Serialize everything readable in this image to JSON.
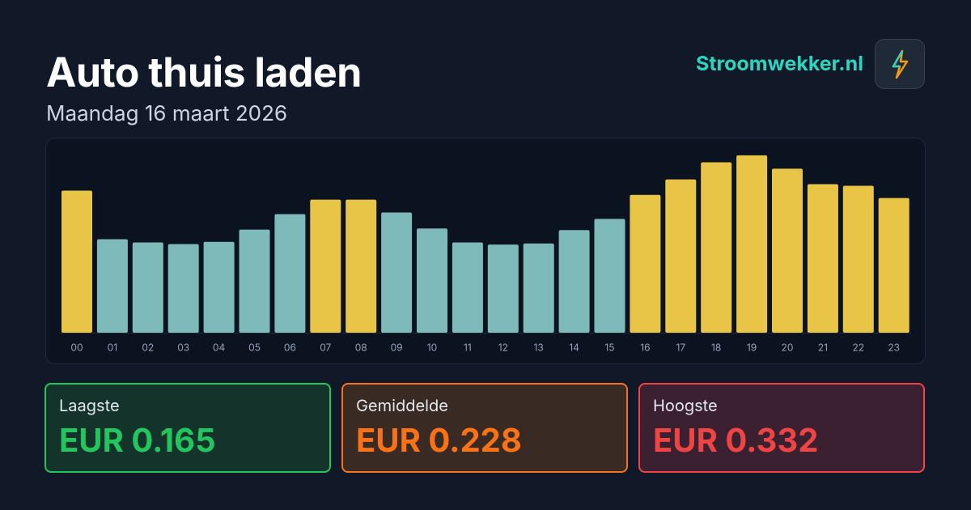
{
  "header": {
    "title": "Auto thuis laden",
    "subtitle": "Maandag 16 maart 2026",
    "brand": "Stroomwekker.nl"
  },
  "chart_data": {
    "type": "bar",
    "categories": [
      "00",
      "01",
      "02",
      "03",
      "04",
      "05",
      "06",
      "07",
      "08",
      "09",
      "10",
      "11",
      "12",
      "13",
      "14",
      "15",
      "16",
      "17",
      "18",
      "19",
      "20",
      "21",
      "22",
      "23"
    ],
    "values": [
      0.266,
      0.175,
      0.169,
      0.166,
      0.17,
      0.193,
      0.222,
      0.249,
      0.249,
      0.225,
      0.195,
      0.169,
      0.165,
      0.167,
      0.192,
      0.213,
      0.258,
      0.287,
      0.319,
      0.332,
      0.307,
      0.278,
      0.275,
      0.252
    ],
    "colors": [
      "#e8c547",
      "#7fbabb",
      "#7fbabb",
      "#7fbabb",
      "#7fbabb",
      "#7fbabb",
      "#7fbabb",
      "#e8c547",
      "#e8c547",
      "#7fbabb",
      "#7fbabb",
      "#7fbabb",
      "#7fbabb",
      "#7fbabb",
      "#7fbabb",
      "#7fbabb",
      "#e8c547",
      "#e8c547",
      "#e8c547",
      "#e8c547",
      "#e8c547",
      "#e8c547",
      "#e8c547",
      "#e8c547"
    ],
    "ylim": [
      0,
      0.35
    ]
  },
  "stats": [
    {
      "label": "Laagste",
      "value": "EUR 0.165"
    },
    {
      "label": "Gemiddelde",
      "value": "EUR 0.228"
    },
    {
      "label": "Hoogste",
      "value": "EUR 0.332"
    }
  ]
}
